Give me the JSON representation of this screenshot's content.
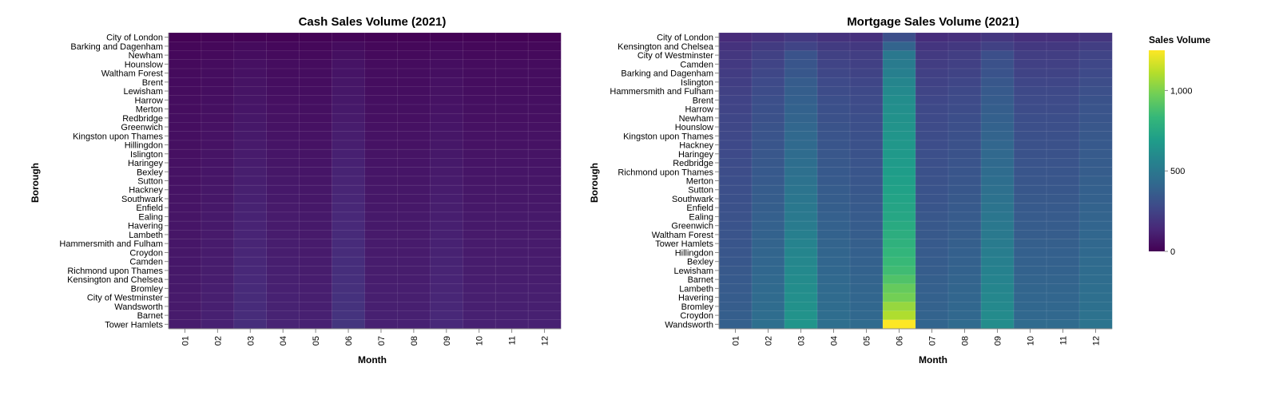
{
  "chart_data": [
    {
      "type": "heatmap",
      "title": "Cash Sales Volume (2021)",
      "xlabel": "Month",
      "ylabel": "Borough",
      "categories": [
        "01",
        "02",
        "03",
        "04",
        "05",
        "06",
        "07",
        "08",
        "09",
        "10",
        "11",
        "12"
      ],
      "rows": [
        "City of London",
        "Barking and Dagenham",
        "Newham",
        "Hounslow",
        "Waltham Forest",
        "Brent",
        "Lewisham",
        "Harrow",
        "Merton",
        "Redbridge",
        "Greenwich",
        "Kingston upon Thames",
        "Hillingdon",
        "Islington",
        "Haringey",
        "Bexley",
        "Sutton",
        "Hackney",
        "Southwark",
        "Enfield",
        "Ealing",
        "Havering",
        "Lambeth",
        "Hammersmith and Fulham",
        "Croydon",
        "Camden",
        "Richmond upon Thames",
        "Kensington and Chelsea",
        "Bromley",
        "City of Westminster",
        "Wandsworth",
        "Barnet",
        "Tower Hamlets"
      ],
      "values": [
        [
          5,
          6,
          8,
          7,
          6,
          10,
          6,
          6,
          7,
          6,
          6,
          6
        ],
        [
          20,
          24,
          34,
          26,
          24,
          40,
          24,
          24,
          30,
          24,
          24,
          24
        ],
        [
          26,
          31,
          44,
          34,
          31,
          52,
          31,
          31,
          39,
          31,
          31,
          31
        ],
        [
          32,
          38,
          54,
          42,
          38,
          64,
          38,
          38,
          48,
          38,
          38,
          38
        ],
        [
          34,
          41,
          58,
          44,
          41,
          68,
          41,
          41,
          51,
          41,
          41,
          41
        ],
        [
          37,
          44,
          63,
          48,
          44,
          74,
          44,
          44,
          56,
          44,
          44,
          44
        ],
        [
          39,
          47,
          66,
          51,
          47,
          78,
          47,
          47,
          59,
          47,
          47,
          47
        ],
        [
          41,
          49,
          70,
          53,
          49,
          82,
          49,
          49,
          62,
          49,
          49,
          49
        ],
        [
          43,
          52,
          73,
          56,
          52,
          86,
          52,
          52,
          65,
          52,
          52,
          52
        ],
        [
          45,
          54,
          77,
          59,
          54,
          90,
          54,
          54,
          68,
          54,
          54,
          54
        ],
        [
          48,
          58,
          82,
          62,
          58,
          96,
          58,
          58,
          72,
          58,
          58,
          58
        ],
        [
          50,
          60,
          85,
          65,
          60,
          100,
          60,
          60,
          75,
          60,
          60,
          60
        ],
        [
          52,
          62,
          88,
          68,
          62,
          104,
          62,
          62,
          78,
          62,
          62,
          62
        ],
        [
          55,
          66,
          94,
          72,
          66,
          110,
          66,
          66,
          82,
          66,
          66,
          66
        ],
        [
          57,
          68,
          97,
          74,
          68,
          114,
          68,
          68,
          86,
          68,
          68,
          68
        ],
        [
          60,
          72,
          102,
          78,
          72,
          120,
          72,
          72,
          90,
          72,
          72,
          72
        ],
        [
          62,
          74,
          105,
          81,
          74,
          124,
          74,
          74,
          93,
          74,
          74,
          74
        ],
        [
          64,
          77,
          109,
          83,
          77,
          128,
          77,
          77,
          96,
          77,
          77,
          77
        ],
        [
          66,
          79,
          112,
          86,
          79,
          132,
          79,
          79,
          99,
          79,
          79,
          79
        ],
        [
          68,
          82,
          116,
          88,
          82,
          136,
          82,
          82,
          102,
          82,
          82,
          82
        ],
        [
          70,
          84,
          119,
          91,
          84,
          140,
          84,
          84,
          105,
          84,
          84,
          84
        ],
        [
          72,
          86,
          122,
          94,
          86,
          144,
          86,
          86,
          108,
          86,
          86,
          86
        ],
        [
          74,
          89,
          126,
          96,
          89,
          148,
          89,
          89,
          111,
          89,
          89,
          89
        ],
        [
          76,
          91,
          129,
          99,
          91,
          152,
          91,
          91,
          114,
          91,
          91,
          91
        ],
        [
          78,
          94,
          133,
          101,
          94,
          156,
          94,
          94,
          117,
          94,
          94,
          94
        ],
        [
          80,
          96,
          136,
          104,
          96,
          160,
          96,
          96,
          120,
          96,
          96,
          96
        ],
        [
          82,
          98,
          139,
          107,
          98,
          164,
          98,
          98,
          123,
          98,
          98,
          98
        ],
        [
          84,
          101,
          143,
          109,
          101,
          168,
          101,
          101,
          126,
          101,
          101,
          101
        ],
        [
          86,
          103,
          146,
          112,
          103,
          172,
          103,
          103,
          129,
          103,
          103,
          103
        ],
        [
          88,
          106,
          150,
          114,
          106,
          176,
          106,
          106,
          132,
          106,
          106,
          106
        ],
        [
          90,
          108,
          153,
          117,
          108,
          180,
          108,
          108,
          135,
          108,
          108,
          108
        ],
        [
          92,
          110,
          156,
          120,
          110,
          184,
          110,
          110,
          138,
          110,
          110,
          110
        ],
        [
          95,
          114,
          162,
          124,
          114,
          190,
          114,
          114,
          143,
          114,
          114,
          114
        ]
      ]
    },
    {
      "type": "heatmap",
      "title": "Mortgage Sales Volume (2021)",
      "xlabel": "Month",
      "ylabel": "Borough",
      "categories": [
        "01",
        "02",
        "03",
        "04",
        "05",
        "06",
        "07",
        "08",
        "09",
        "10",
        "11",
        "12"
      ],
      "rows": [
        "City of London",
        "Kensington and Chelsea",
        "City of Westminster",
        "Camden",
        "Barking and Dagenham",
        "Islington",
        "Hammersmith and Fulham",
        "Brent",
        "Harrow",
        "Newham",
        "Hounslow",
        "Kingston upon Thames",
        "Hackney",
        "Haringey",
        "Redbridge",
        "Richmond upon Thames",
        "Merton",
        "Sutton",
        "Southwark",
        "Enfield",
        "Ealing",
        "Greenwich",
        "Waltham Forest",
        "Tower Hamlets",
        "Hillingdon",
        "Bexley",
        "Lewisham",
        "Barnet",
        "Lambeth",
        "Havering",
        "Bromley",
        "Croydon",
        "Wandsworth"
      ],
      "values": [
        [
          150,
          180,
          210,
          180,
          170,
          300,
          160,
          170,
          200,
          170,
          170,
          190
        ],
        [
          180,
          216,
          252,
          216,
          204,
          400,
          192,
          204,
          240,
          204,
          204,
          228
        ],
        [
          200,
          240,
          320,
          240,
          227,
          500,
          213,
          227,
          300,
          227,
          227,
          253
        ],
        [
          210,
          252,
          330,
          252,
          238,
          520,
          224,
          238,
          310,
          238,
          238,
          266
        ],
        [
          220,
          264,
          340,
          264,
          249,
          540,
          235,
          249,
          320,
          249,
          249,
          279
        ],
        [
          230,
          276,
          360,
          276,
          261,
          570,
          245,
          261,
          340,
          261,
          261,
          291
        ],
        [
          240,
          288,
          370,
          288,
          272,
          590,
          256,
          272,
          350,
          272,
          272,
          304
        ],
        [
          250,
          300,
          380,
          300,
          283,
          610,
          267,
          283,
          360,
          283,
          283,
          317
        ],
        [
          255,
          306,
          390,
          306,
          289,
          620,
          272,
          289,
          370,
          289,
          289,
          323
        ],
        [
          260,
          312,
          400,
          312,
          295,
          630,
          277,
          295,
          380,
          295,
          295,
          329
        ],
        [
          265,
          318,
          410,
          318,
          300,
          640,
          283,
          300,
          390,
          300,
          300,
          336
        ],
        [
          270,
          324,
          420,
          324,
          306,
          650,
          288,
          306,
          400,
          306,
          306,
          342
        ],
        [
          275,
          330,
          430,
          330,
          312,
          660,
          293,
          312,
          410,
          312,
          312,
          348
        ],
        [
          280,
          336,
          440,
          336,
          317,
          670,
          299,
          317,
          420,
          317,
          317,
          355
        ],
        [
          285,
          342,
          450,
          342,
          323,
          680,
          304,
          323,
          430,
          323,
          323,
          361
        ],
        [
          290,
          348,
          460,
          348,
          329,
          690,
          309,
          329,
          440,
          329,
          329,
          367
        ],
        [
          295,
          354,
          470,
          354,
          334,
          700,
          315,
          334,
          450,
          334,
          334,
          374
        ],
        [
          300,
          360,
          480,
          360,
          340,
          710,
          320,
          340,
          460,
          340,
          340,
          380
        ],
        [
          305,
          366,
          490,
          366,
          346,
          720,
          325,
          346,
          470,
          346,
          346,
          386
        ],
        [
          310,
          372,
          500,
          372,
          351,
          730,
          331,
          351,
          480,
          351,
          351,
          393
        ],
        [
          315,
          378,
          510,
          378,
          357,
          740,
          336,
          357,
          490,
          357,
          357,
          399
        ],
        [
          320,
          384,
          520,
          384,
          363,
          760,
          341,
          363,
          500,
          363,
          363,
          405
        ],
        [
          325,
          390,
          540,
          390,
          368,
          780,
          347,
          368,
          510,
          368,
          368,
          412
        ],
        [
          330,
          396,
          560,
          396,
          374,
          800,
          352,
          374,
          520,
          374,
          374,
          418
        ],
        [
          335,
          402,
          570,
          402,
          380,
          820,
          357,
          380,
          530,
          380,
          380,
          424
        ],
        [
          340,
          408,
          580,
          408,
          385,
          840,
          363,
          385,
          540,
          385,
          385,
          431
        ],
        [
          345,
          414,
          590,
          414,
          391,
          860,
          368,
          391,
          550,
          391,
          391,
          437
        ],
        [
          350,
          420,
          600,
          420,
          397,
          900,
          373,
          397,
          560,
          397,
          397,
          443
        ],
        [
          355,
          426,
          610,
          426,
          402,
          950,
          379,
          402,
          570,
          402,
          402,
          450
        ],
        [
          360,
          432,
          620,
          432,
          408,
          980,
          384,
          408,
          580,
          408,
          408,
          456
        ],
        [
          365,
          438,
          630,
          438,
          414,
          1050,
          389,
          414,
          590,
          414,
          414,
          462
        ],
        [
          370,
          444,
          640,
          444,
          419,
          1100,
          395,
          419,
          600,
          419,
          419,
          469
        ],
        [
          380,
          456,
          650,
          456,
          431,
          1250,
          405,
          431,
          610,
          431,
          431,
          481
        ]
      ]
    }
  ],
  "legend": {
    "title": "Sales Volume",
    "domain": [
      0,
      1250
    ],
    "ticks": [
      {
        "value": 0,
        "label": "0"
      },
      {
        "value": 500,
        "label": "500"
      },
      {
        "value": 1000,
        "label": "1,000"
      }
    ],
    "colors": [
      "#440154",
      "#482878",
      "#3e4a89",
      "#31688e",
      "#26828e",
      "#1f9e89",
      "#35b779",
      "#6ece58",
      "#b5de2b",
      "#fde725"
    ]
  }
}
